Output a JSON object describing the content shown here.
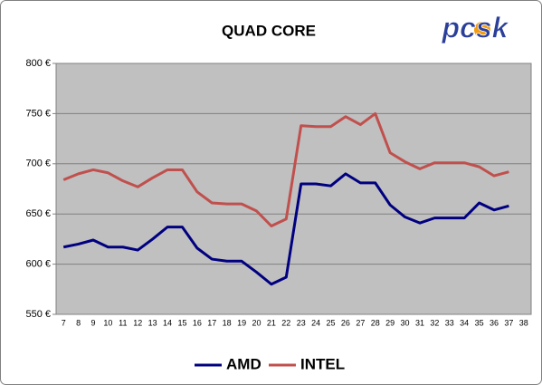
{
  "chart_data": {
    "type": "line",
    "title": "QUAD CORE",
    "logo": "pcsk",
    "categories": [
      "7",
      "8",
      "9",
      "10",
      "11",
      "12",
      "13",
      "14",
      "15",
      "16",
      "17",
      "18",
      "19",
      "20",
      "21",
      "22",
      "23",
      "24",
      "25",
      "26",
      "27",
      "28",
      "29",
      "30",
      "31",
      "32",
      "33",
      "34",
      "35",
      "36",
      "37",
      "38"
    ],
    "series": [
      {
        "name": "AMD",
        "color": "#000080",
        "values": [
          617,
          620,
          624,
          617,
          617,
          614,
          625,
          637,
          637,
          616,
          605,
          603,
          603,
          592,
          580,
          587,
          680,
          680,
          678,
          690,
          681,
          681,
          659,
          647,
          641,
          646,
          646,
          646,
          661,
          654,
          658,
          null
        ]
      },
      {
        "name": "INTEL",
        "color": "#c0504d",
        "values": [
          684,
          690,
          694,
          691,
          683,
          677,
          686,
          694,
          694,
          672,
          661,
          660,
          660,
          653,
          638,
          645,
          738,
          737,
          737,
          747,
          739,
          750,
          711,
          702,
          695,
          701,
          701,
          701,
          697,
          688,
          692,
          null
        ]
      }
    ],
    "ylim": [
      550,
      800
    ],
    "yticks": [
      {
        "value": 550,
        "label": "550 €"
      },
      {
        "value": 600,
        "label": "600 €"
      },
      {
        "value": 650,
        "label": "650 €"
      },
      {
        "value": 700,
        "label": "700 €"
      },
      {
        "value": 750,
        "label": "750 €"
      },
      {
        "value": 800,
        "label": "800 €"
      }
    ],
    "grid": true,
    "legend": "bottom"
  }
}
